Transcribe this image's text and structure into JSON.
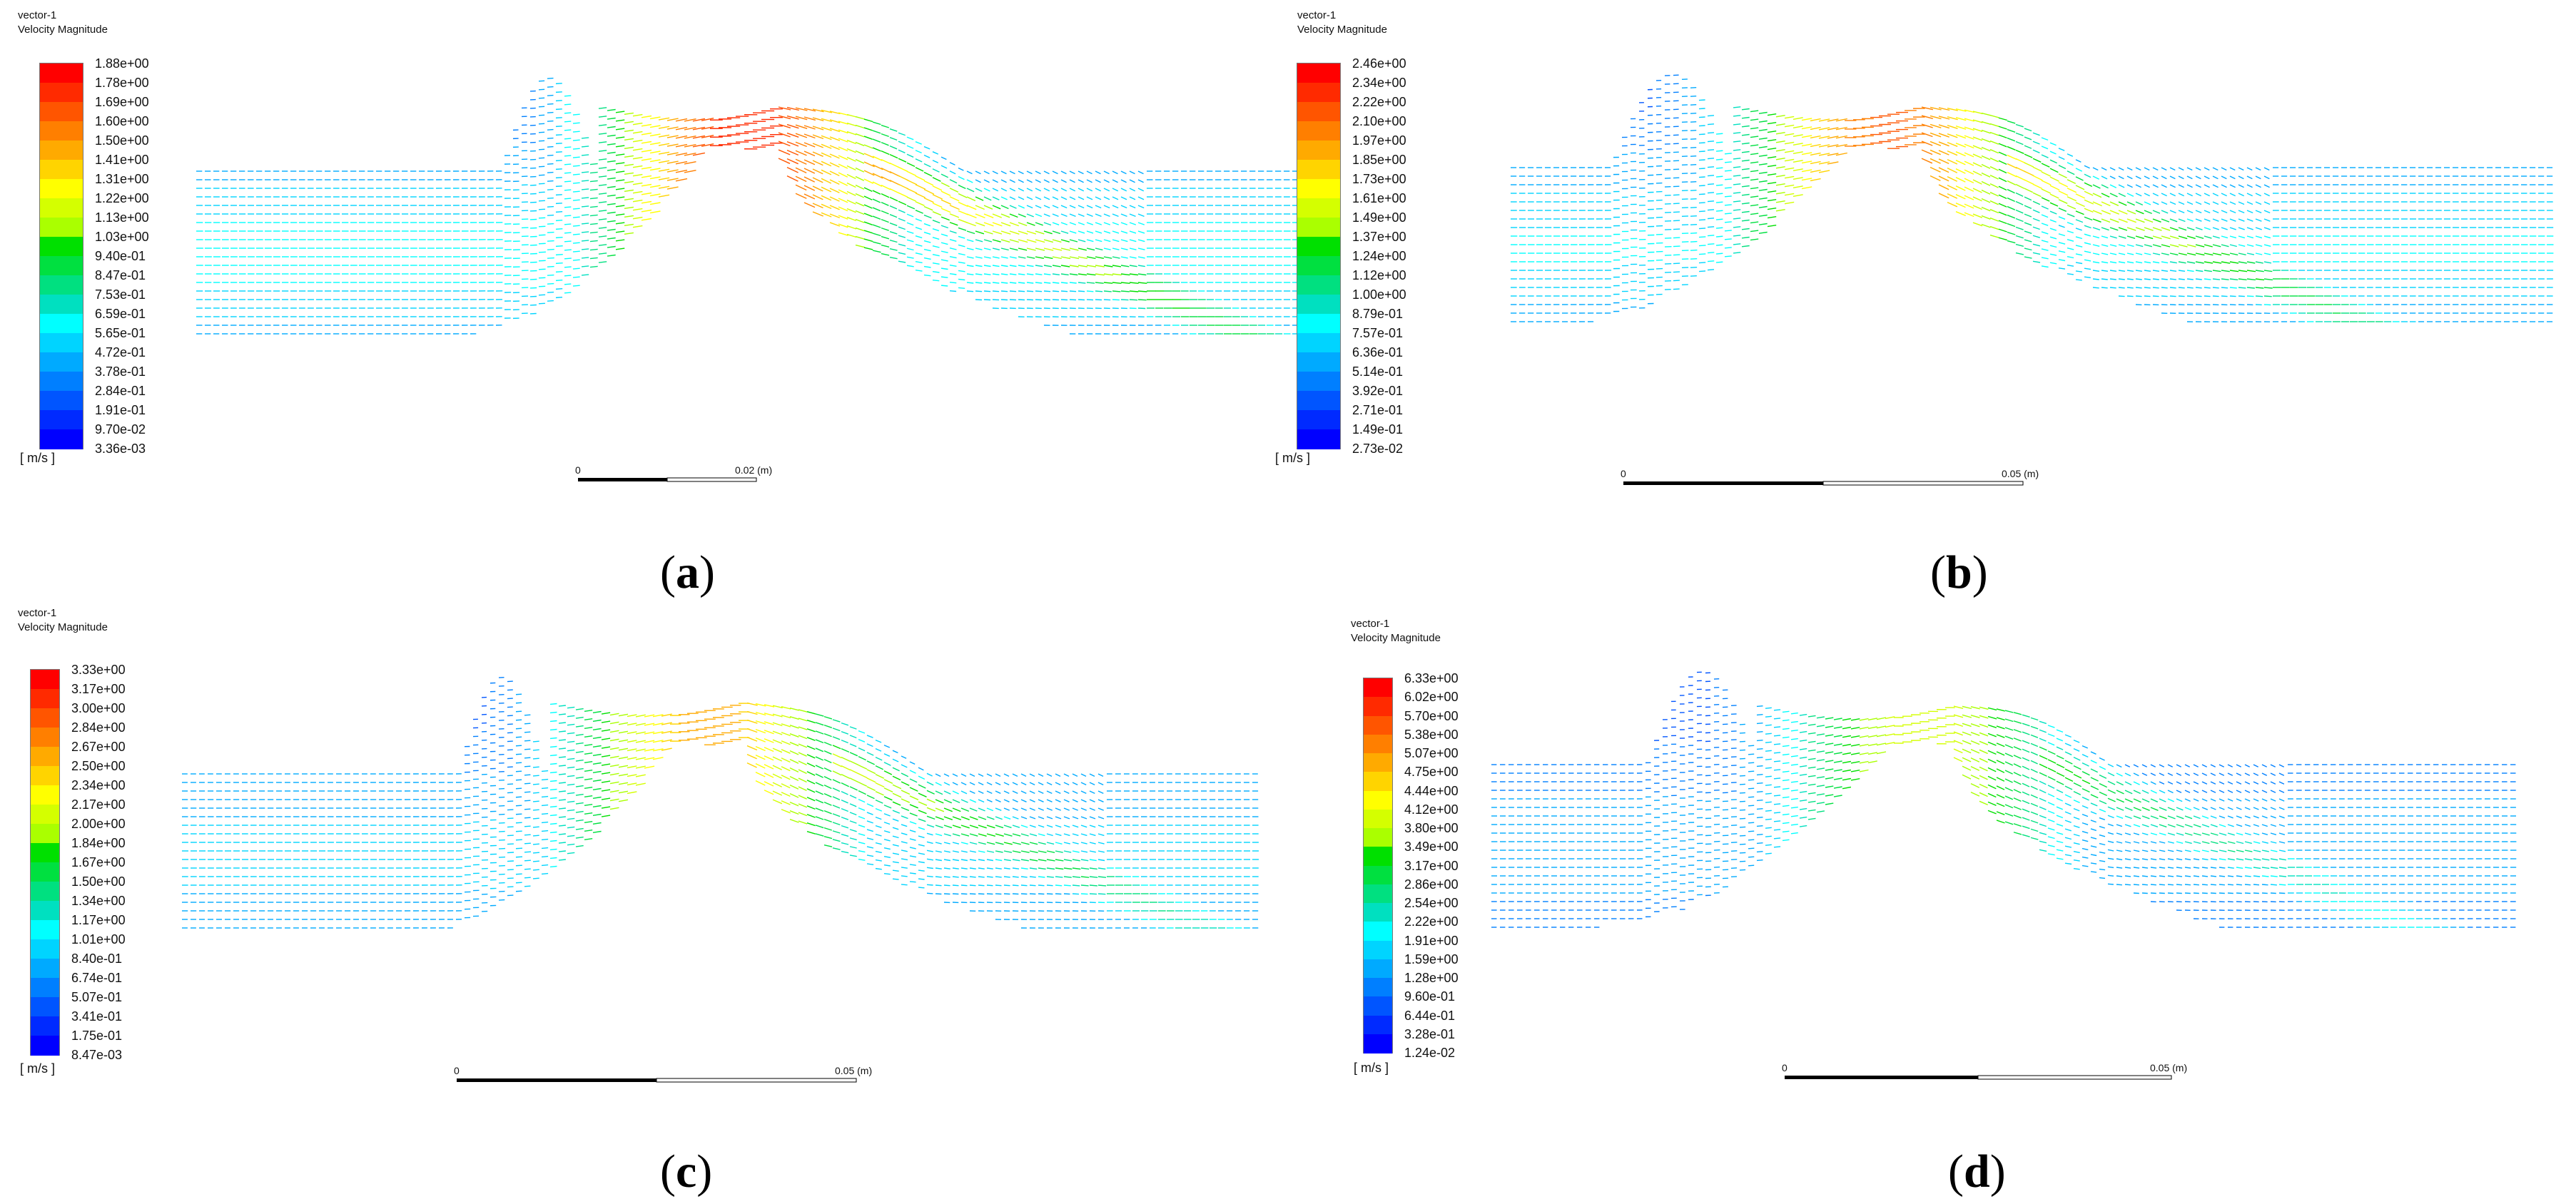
{
  "panels": [
    {
      "id": "a",
      "title1": "vector-1",
      "title2": "Velocity Magnitude",
      "unit": "[ m/s ]",
      "labels": [
        "1.88e+00",
        "1.78e+00",
        "1.69e+00",
        "1.60e+00",
        "1.50e+00",
        "1.41e+00",
        "1.31e+00",
        "1.22e+00",
        "1.13e+00",
        "1.03e+00",
        "9.40e-01",
        "8.47e-01",
        "7.53e-01",
        "6.59e-01",
        "5.65e-01",
        "4.72e-01",
        "3.78e-01",
        "2.84e-01",
        "1.91e-01",
        "9.70e-02",
        "3.36e-03"
      ],
      "scale_start": "0",
      "scale_end": "0.02",
      "scale_unit": "(m)",
      "caption": "a",
      "intensity": 1.0
    },
    {
      "id": "b",
      "title1": "vector-1",
      "title2": "Velocity Magnitude",
      "unit": "[ m/s ]",
      "labels": [
        "2.46e+00",
        "2.34e+00",
        "2.22e+00",
        "2.10e+00",
        "1.97e+00",
        "1.85e+00",
        "1.73e+00",
        "1.61e+00",
        "1.49e+00",
        "1.37e+00",
        "1.24e+00",
        "1.12e+00",
        "1.00e+00",
        "8.79e-01",
        "7.57e-01",
        "6.36e-01",
        "5.14e-01",
        "3.92e-01",
        "2.71e-01",
        "1.49e-01",
        "2.73e-02"
      ],
      "scale_start": "0",
      "scale_end": "0.05",
      "scale_unit": "(m)",
      "caption": "b",
      "intensity": 0.9
    },
    {
      "id": "c",
      "title1": "vector-1",
      "title2": "Velocity Magnitude",
      "unit": "[ m/s ]",
      "labels": [
        "3.33e+00",
        "3.17e+00",
        "3.00e+00",
        "2.84e+00",
        "2.67e+00",
        "2.50e+00",
        "2.34e+00",
        "2.17e+00",
        "2.00e+00",
        "1.84e+00",
        "1.67e+00",
        "1.50e+00",
        "1.34e+00",
        "1.17e+00",
        "1.01e+00",
        "8.40e-01",
        "6.74e-01",
        "5.07e-01",
        "3.41e-01",
        "1.75e-01",
        "8.47e-03"
      ],
      "scale_start": "0",
      "scale_end": "0.05",
      "scale_unit": "(m)",
      "caption": "c",
      "intensity": 0.8
    },
    {
      "id": "d",
      "title1": "vector-1",
      "title2": "Velocity Magnitude",
      "unit": "[ m/s ]",
      "labels": [
        "6.33e+00",
        "6.02e+00",
        "5.70e+00",
        "5.38e+00",
        "5.07e+00",
        "4.75e+00",
        "4.44e+00",
        "4.12e+00",
        "3.80e+00",
        "3.49e+00",
        "3.17e+00",
        "2.86e+00",
        "2.54e+00",
        "2.22e+00",
        "1.91e+00",
        "1.59e+00",
        "1.28e+00",
        "9.60e-01",
        "6.44e-01",
        "3.28e-01",
        "1.24e-02"
      ],
      "scale_start": "0",
      "scale_end": "0.05",
      "scale_unit": "(m)",
      "caption": "d",
      "intensity": 0.65
    }
  ],
  "colormap": [
    "#ff0000",
    "#ff2a00",
    "#ff5500",
    "#ff7f00",
    "#ffaa00",
    "#ffd400",
    "#ffff00",
    "#d4ff00",
    "#aaff00",
    "#00e000",
    "#00e040",
    "#00e080",
    "#00e0c0",
    "#00ffff",
    "#00d4ff",
    "#00aaff",
    "#007fff",
    "#0055ff",
    "#002aff",
    "#0000ff"
  ]
}
